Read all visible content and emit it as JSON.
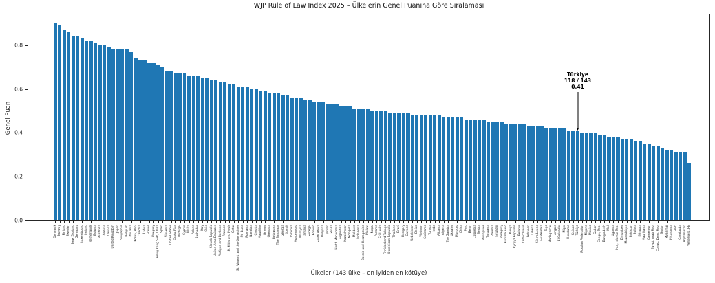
{
  "title": "WJP Rule of Law Index 2025 – Ülkelerin Genel Puanına Göre Sıralaması",
  "annotation": {
    "line1": "Türkiye",
    "line2": "118 / 143",
    "line3": "0.41"
  },
  "colors": {
    "bar": "#1f77b4",
    "axis": "#262626",
    "annotation_text": "#000000"
  },
  "chart_data": {
    "type": "bar",
    "title": "WJP Rule of Law Index 2025 – Ülkelerin Genel Puanına Göre Sıralaması",
    "xlabel": "Ülkeler (143 ülke – en iyiden en kötüye)",
    "ylabel": "Genel Puan",
    "ylim": [
      0,
      0.94
    ],
    "yticks": [
      0.0,
      0.2,
      0.4,
      0.6,
      0.8
    ],
    "grid": false,
    "legend": false,
    "bar_color": "#1f77b4",
    "highlight": {
      "category": "Türkiye",
      "rank": 118,
      "total": 143,
      "value": 0.41
    },
    "categories": [
      "Denmark",
      "Norway",
      "Finland",
      "Sweden",
      "New Zealand",
      "Germany",
      "Luxembourg",
      "Ireland",
      "Netherlands",
      "Estonia",
      "Australia",
      "Austria",
      "Canada",
      "United Kingdom",
      "Japan",
      "Singapore",
      "Belgium",
      "Lithuania",
      "Korea, Rep.",
      "Czechia",
      "Latvia",
      "France",
      "Uruguay",
      "Hong Kong SAR, China",
      "Spain",
      "Slovenia",
      "United States",
      "Costa Rica",
      "Portugal",
      "Cyprus",
      "Malta",
      "Poland",
      "Barbados",
      "Italy",
      "Chile",
      "Slovak Republic",
      "United Arab Emirates",
      "Antigua and Barbuda",
      "Rwanda",
      "St. Kitts and Nevis",
      "Qatar",
      "St. Vincent and the Grenadines",
      "St. Lucia",
      "Romania",
      "Namibia",
      "Croatia",
      "Mauritius",
      "Greece",
      "Grenada",
      "Botswana",
      "The Bahamas",
      "Georgia",
      "Kuwait",
      "Dominica",
      "Montenegro",
      "Malaysia",
      "Jamaica",
      "Senegal",
      "Kosovo",
      "South Africa",
      "Bulgaria",
      "Jordan",
      "Ghana",
      "North Macedonia",
      "Argentina",
      "Kazakhstan",
      "Mongolia",
      "Moldova",
      "Indonesia",
      "Bosnia and Herzegovina",
      "Malawi",
      "Nepal",
      "Panama",
      "Sri Lanka",
      "Trinidad and Tobago",
      "Dominican Republic",
      "Thailand",
      "Brazil",
      "Hungary",
      "Guyana",
      "Uzbekistan",
      "Belize",
      "Vietnam",
      "Suriname",
      "Tunisia",
      "India",
      "Albania",
      "Algeria",
      "The Gambia",
      "Ukraine",
      "Morocco",
      "China",
      "Peru",
      "Benin",
      "Colombia",
      "Serbia",
      "Philippines",
      "Tanzania",
      "Zambia",
      "Ecuador",
      "Paraguay",
      "Burkina Faso",
      "Kenya",
      "Kyrgyz Republic",
      "Belarus",
      "Côte d'Ivoire",
      "Lebanon",
      "Liberia",
      "Sierra Leone",
      "Guatemala",
      "Togo",
      "Madagascar",
      "Angola",
      "El Salvador",
      "Niger",
      "Honduras",
      "Guinea",
      "Türkiye",
      "Russian Federation",
      "Nigeria",
      "Mexico",
      "Gabon",
      "Congo, Rep.",
      "Bangladesh",
      "Mali",
      "Uganda",
      "Iran, Islamic Rep.",
      "Zimbabwe",
      "Mozambique",
      "Pakistan",
      "Bolivia",
      "Ethiopia",
      "Mauritania",
      "Cameroon",
      "Egypt, Arab Rep.",
      "Congo, Dem. Rep.",
      "Sudan",
      "Myanmar",
      "Nicaragua",
      "Haiti",
      "Cambodia",
      "Afghanistan",
      "Venezuela, RB"
    ],
    "values": [
      0.9,
      0.89,
      0.87,
      0.86,
      0.84,
      0.84,
      0.83,
      0.82,
      0.82,
      0.81,
      0.8,
      0.8,
      0.79,
      0.78,
      0.78,
      0.78,
      0.78,
      0.77,
      0.74,
      0.73,
      0.73,
      0.72,
      0.72,
      0.71,
      0.7,
      0.68,
      0.68,
      0.67,
      0.67,
      0.67,
      0.66,
      0.66,
      0.66,
      0.65,
      0.65,
      0.64,
      0.64,
      0.63,
      0.63,
      0.62,
      0.62,
      0.61,
      0.61,
      0.61,
      0.6,
      0.6,
      0.59,
      0.59,
      0.58,
      0.58,
      0.58,
      0.57,
      0.57,
      0.56,
      0.56,
      0.56,
      0.55,
      0.55,
      0.54,
      0.54,
      0.54,
      0.53,
      0.53,
      0.53,
      0.52,
      0.52,
      0.52,
      0.51,
      0.51,
      0.51,
      0.51,
      0.5,
      0.5,
      0.5,
      0.5,
      0.49,
      0.49,
      0.49,
      0.49,
      0.49,
      0.48,
      0.48,
      0.48,
      0.48,
      0.48,
      0.48,
      0.48,
      0.47,
      0.47,
      0.47,
      0.47,
      0.47,
      0.46,
      0.46,
      0.46,
      0.46,
      0.46,
      0.45,
      0.45,
      0.45,
      0.45,
      0.44,
      0.44,
      0.44,
      0.44,
      0.44,
      0.43,
      0.43,
      0.43,
      0.43,
      0.42,
      0.42,
      0.42,
      0.42,
      0.42,
      0.41,
      0.41,
      0.41,
      0.4,
      0.4,
      0.4,
      0.4,
      0.39,
      0.39,
      0.38,
      0.38,
      0.38,
      0.37,
      0.37,
      0.37,
      0.36,
      0.36,
      0.35,
      0.35,
      0.34,
      0.34,
      0.33,
      0.32,
      0.32,
      0.31,
      0.31,
      0.31,
      0.26
    ]
  }
}
